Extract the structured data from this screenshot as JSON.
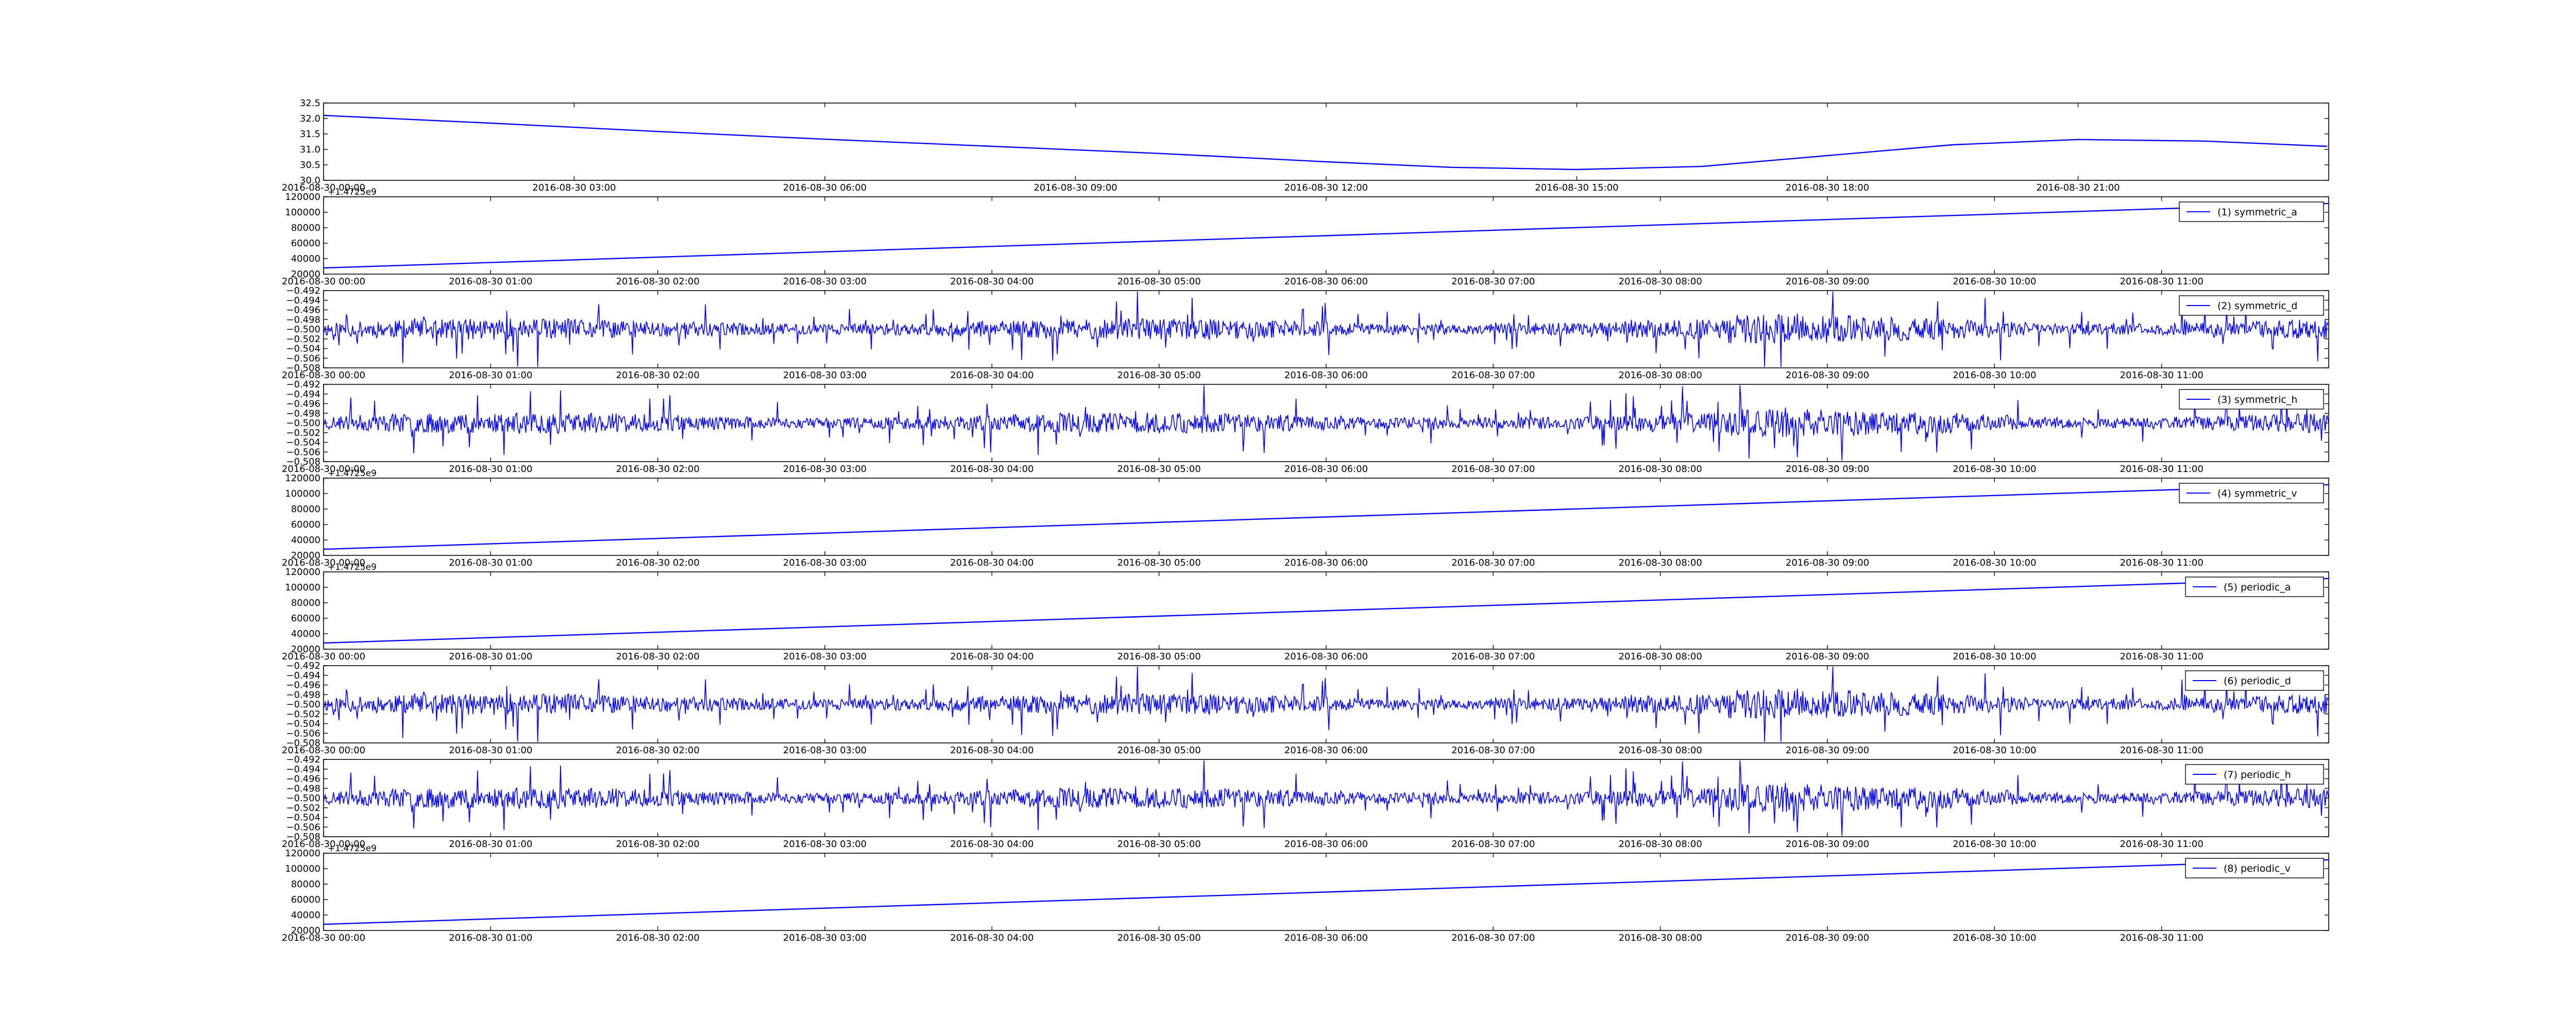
{
  "figure": {
    "background": "#ffffff",
    "line_color": "#0000ff"
  },
  "chart_data": [
    {
      "type": "line",
      "name": "",
      "legend": "",
      "series_kind": "sine",
      "x": {
        "ticks": [
          "2016-08-30 00:00",
          "2016-08-30 03:00",
          "2016-08-30 06:00",
          "2016-08-30 09:00",
          "2016-08-30 12:00",
          "2016-08-30 15:00",
          "2016-08-30 18:00",
          "2016-08-30 21:00"
        ],
        "span_hours": 24
      },
      "y": {
        "ticks": [
          "30.0",
          "30.5",
          "31.0",
          "31.5",
          "32.0",
          "32.5"
        ],
        "lim": [
          30.0,
          32.5
        ]
      },
      "offset_text": "",
      "points": [
        [
          "2016-08-30 00:00",
          32.1
        ],
        [
          "2016-08-30 02:00",
          31.85
        ],
        [
          "2016-08-30 04:00",
          31.58
        ],
        [
          "2016-08-30 06:00",
          31.33
        ],
        [
          "2016-08-30 08:00",
          31.1
        ],
        [
          "2016-08-30 10:00",
          30.87
        ],
        [
          "2016-08-30 12:00",
          30.6
        ],
        [
          "2016-08-30 13:30",
          30.42
        ],
        [
          "2016-08-30 15:00",
          30.35
        ],
        [
          "2016-08-30 16:30",
          30.45
        ],
        [
          "2016-08-30 18:00",
          30.8
        ],
        [
          "2016-08-30 19:30",
          31.15
        ],
        [
          "2016-08-30 21:00",
          31.32
        ],
        [
          "2016-08-30 22:30",
          31.27
        ],
        [
          "2016-08-30 23:59",
          31.1
        ]
      ]
    },
    {
      "type": "line",
      "legend": "(1) symmetric_a",
      "series_kind": "linear",
      "x": {
        "ticks": [
          "2016-08-30 00:00",
          "2016-08-30 01:00",
          "2016-08-30 02:00",
          "2016-08-30 03:00",
          "2016-08-30 04:00",
          "2016-08-30 05:00",
          "2016-08-30 06:00",
          "2016-08-30 07:00",
          "2016-08-30 08:00",
          "2016-08-30 09:00",
          "2016-08-30 10:00",
          "2016-08-30 11:00"
        ],
        "span_hours": 12
      },
      "y": {
        "ticks": [
          "20000",
          "40000",
          "60000",
          "80000",
          "100000",
          "120000"
        ],
        "lim": [
          20000,
          120000
        ]
      },
      "offset_text": "+1.4725e9",
      "line_range": [
        28000,
        111500
      ]
    },
    {
      "type": "line",
      "legend": "(2) symmetric_d",
      "series_kind": "noise",
      "seed": 11,
      "x": {
        "ticks": [
          "2016-08-30 00:00",
          "2016-08-30 01:00",
          "2016-08-30 02:00",
          "2016-08-30 03:00",
          "2016-08-30 04:00",
          "2016-08-30 05:00",
          "2016-08-30 06:00",
          "2016-08-30 07:00",
          "2016-08-30 08:00",
          "2016-08-30 09:00",
          "2016-08-30 10:00",
          "2016-08-30 11:00"
        ],
        "span_hours": 12
      },
      "y": {
        "ticks": [
          "−0.508",
          "−0.506",
          "−0.504",
          "−0.502",
          "−0.500",
          "−0.498",
          "−0.496",
          "−0.494",
          "−0.492"
        ],
        "lim": [
          -0.508,
          -0.492
        ]
      },
      "offset_text": "",
      "baseline": -0.5
    },
    {
      "type": "line",
      "legend": "(3) symmetric_h",
      "series_kind": "noise",
      "seed": 23,
      "x": {
        "ticks": [
          "2016-08-30 00:00",
          "2016-08-30 01:00",
          "2016-08-30 02:00",
          "2016-08-30 03:00",
          "2016-08-30 04:00",
          "2016-08-30 05:00",
          "2016-08-30 06:00",
          "2016-08-30 07:00",
          "2016-08-30 08:00",
          "2016-08-30 09:00",
          "2016-08-30 10:00",
          "2016-08-30 11:00"
        ],
        "span_hours": 12
      },
      "y": {
        "ticks": [
          "−0.508",
          "−0.506",
          "−0.504",
          "−0.502",
          "−0.500",
          "−0.498",
          "−0.496",
          "−0.494",
          "−0.492"
        ],
        "lim": [
          -0.508,
          -0.492
        ]
      },
      "offset_text": "",
      "baseline": -0.5
    },
    {
      "type": "line",
      "legend": "(4) symmetric_v",
      "series_kind": "linear",
      "x": {
        "ticks": [
          "2016-08-30 00:00",
          "2016-08-30 01:00",
          "2016-08-30 02:00",
          "2016-08-30 03:00",
          "2016-08-30 04:00",
          "2016-08-30 05:00",
          "2016-08-30 06:00",
          "2016-08-30 07:00",
          "2016-08-30 08:00",
          "2016-08-30 09:00",
          "2016-08-30 10:00",
          "2016-08-30 11:00"
        ],
        "span_hours": 12
      },
      "y": {
        "ticks": [
          "20000",
          "40000",
          "60000",
          "80000",
          "100000",
          "120000"
        ],
        "lim": [
          20000,
          120000
        ]
      },
      "offset_text": "+1.4725e9",
      "line_range": [
        28000,
        111500
      ]
    },
    {
      "type": "line",
      "legend": "(5) periodic_a",
      "series_kind": "linear",
      "x": {
        "ticks": [
          "2016-08-30 00:00",
          "2016-08-30 01:00",
          "2016-08-30 02:00",
          "2016-08-30 03:00",
          "2016-08-30 04:00",
          "2016-08-30 05:00",
          "2016-08-30 06:00",
          "2016-08-30 07:00",
          "2016-08-30 08:00",
          "2016-08-30 09:00",
          "2016-08-30 10:00",
          "2016-08-30 11:00"
        ],
        "span_hours": 12
      },
      "y": {
        "ticks": [
          "20000",
          "40000",
          "60000",
          "80000",
          "100000",
          "120000"
        ],
        "lim": [
          20000,
          120000
        ]
      },
      "offset_text": "+1.4725e9",
      "line_range": [
        28000,
        111500
      ]
    },
    {
      "type": "line",
      "legend": "(6) periodic_d",
      "series_kind": "noise",
      "seed": 11,
      "x": {
        "ticks": [
          "2016-08-30 00:00",
          "2016-08-30 01:00",
          "2016-08-30 02:00",
          "2016-08-30 03:00",
          "2016-08-30 04:00",
          "2016-08-30 05:00",
          "2016-08-30 06:00",
          "2016-08-30 07:00",
          "2016-08-30 08:00",
          "2016-08-30 09:00",
          "2016-08-30 10:00",
          "2016-08-30 11:00"
        ],
        "span_hours": 12
      },
      "y": {
        "ticks": [
          "−0.508",
          "−0.506",
          "−0.504",
          "−0.502",
          "−0.500",
          "−0.498",
          "−0.496",
          "−0.494",
          "−0.492"
        ],
        "lim": [
          -0.508,
          -0.492
        ]
      },
      "offset_text": "",
      "baseline": -0.5
    },
    {
      "type": "line",
      "legend": "(7) periodic_h",
      "series_kind": "noise",
      "seed": 23,
      "x": {
        "ticks": [
          "2016-08-30 00:00",
          "2016-08-30 01:00",
          "2016-08-30 02:00",
          "2016-08-30 03:00",
          "2016-08-30 04:00",
          "2016-08-30 05:00",
          "2016-08-30 06:00",
          "2016-08-30 07:00",
          "2016-08-30 08:00",
          "2016-08-30 09:00",
          "2016-08-30 10:00",
          "2016-08-30 11:00"
        ],
        "span_hours": 12
      },
      "y": {
        "ticks": [
          "−0.508",
          "−0.506",
          "−0.504",
          "−0.502",
          "−0.500",
          "−0.498",
          "−0.496",
          "−0.494",
          "−0.492"
        ],
        "lim": [
          -0.508,
          -0.492
        ]
      },
      "offset_text": "",
      "baseline": -0.5
    },
    {
      "type": "line",
      "legend": "(8) periodic_v",
      "series_kind": "linear",
      "x": {
        "ticks": [
          "2016-08-30 00:00",
          "2016-08-30 01:00",
          "2016-08-30 02:00",
          "2016-08-30 03:00",
          "2016-08-30 04:00",
          "2016-08-30 05:00",
          "2016-08-30 06:00",
          "2016-08-30 07:00",
          "2016-08-30 08:00",
          "2016-08-30 09:00",
          "2016-08-30 10:00",
          "2016-08-30 11:00"
        ],
        "span_hours": 12
      },
      "y": {
        "ticks": [
          "20000",
          "40000",
          "60000",
          "80000",
          "100000",
          "120000"
        ],
        "lim": [
          20000,
          120000
        ]
      },
      "offset_text": "+1.4725e9",
      "line_range": [
        28000,
        111500
      ]
    }
  ]
}
